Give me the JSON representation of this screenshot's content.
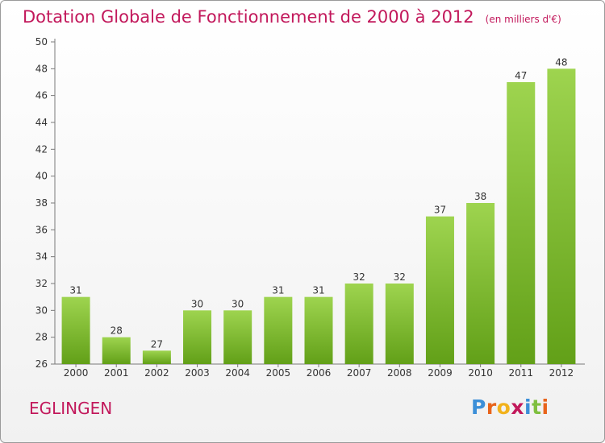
{
  "title": "Dotation Globale de Fonctionnement de 2000 à 2012",
  "subtitle": "(en milliers d'€)",
  "commune": "EGLINGEN",
  "logo": {
    "letters": [
      "P",
      "r",
      "o",
      "x",
      "i",
      "t",
      "i"
    ],
    "colors": [
      "#3c8fd8",
      "#e8641b",
      "#f2b21c",
      "#c2185b",
      "#3c8fd8",
      "#7fbf3f",
      "#e8641b"
    ]
  },
  "colors": {
    "bar": "#7cbf2e",
    "title": "#c2185b"
  },
  "chart_data": {
    "type": "bar",
    "categories": [
      "2000",
      "2001",
      "2002",
      "2003",
      "2004",
      "2005",
      "2006",
      "2007",
      "2008",
      "2009",
      "2010",
      "2011",
      "2012"
    ],
    "values": [
      31,
      28,
      27,
      30,
      30,
      31,
      31,
      32,
      32,
      37,
      38,
      47,
      48
    ],
    "ylim": [
      26,
      50
    ],
    "yticks": [
      26,
      28,
      30,
      32,
      34,
      36,
      38,
      40,
      42,
      44,
      46,
      48,
      50
    ],
    "grid": false,
    "legend": "none"
  }
}
